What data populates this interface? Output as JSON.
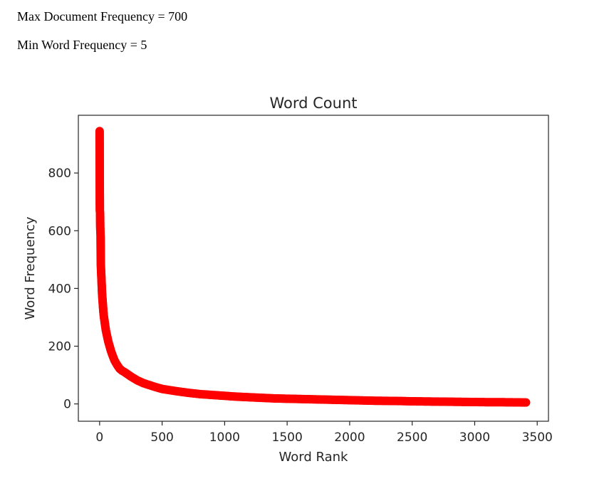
{
  "params": {
    "max_doc_freq": "Max Document Frequency = 700",
    "min_word_freq": "Min Word Frequency = 5"
  },
  "colors": {
    "marker": "#ff0000",
    "axis": "#262626"
  },
  "chart_data": {
    "type": "scatter",
    "title": "Word Count",
    "xlabel": "Word Rank",
    "ylabel": "Word Frequency",
    "xlim": [
      -170,
      3590
    ],
    "ylim": [
      -60,
      1000
    ],
    "xticks": [
      0,
      500,
      1000,
      1500,
      2000,
      2500,
      3000,
      3500
    ],
    "yticks": [
      0,
      200,
      400,
      600,
      800
    ],
    "grid": false,
    "marker_color": "#ff0000",
    "series": [
      {
        "points": [
          [
            0,
            945
          ],
          [
            1,
            787
          ],
          [
            2,
            670
          ],
          [
            3,
            665
          ],
          [
            4,
            660
          ],
          [
            5,
            615
          ],
          [
            6,
            600
          ],
          [
            7,
            590
          ],
          [
            8,
            580
          ],
          [
            9,
            512
          ],
          [
            10,
            480
          ],
          [
            11,
            470
          ],
          [
            12,
            460
          ],
          [
            14,
            440
          ],
          [
            16,
            420
          ],
          [
            18,
            400
          ],
          [
            20,
            380
          ],
          [
            25,
            350
          ],
          [
            30,
            320
          ],
          [
            35,
            300
          ],
          [
            40,
            285
          ],
          [
            50,
            255
          ],
          [
            60,
            235
          ],
          [
            70,
            215
          ],
          [
            80,
            200
          ],
          [
            90,
            185
          ],
          [
            100,
            172
          ],
          [
            120,
            150
          ],
          [
            140,
            135
          ],
          [
            160,
            122
          ],
          [
            180,
            115
          ],
          [
            200,
            110
          ],
          [
            250,
            95
          ],
          [
            300,
            82
          ],
          [
            350,
            72
          ],
          [
            400,
            65
          ],
          [
            450,
            58
          ],
          [
            500,
            52
          ],
          [
            600,
            45
          ],
          [
            700,
            39
          ],
          [
            800,
            34
          ],
          [
            900,
            31
          ],
          [
            1000,
            28
          ],
          [
            1100,
            25
          ],
          [
            1200,
            23
          ],
          [
            1300,
            21
          ],
          [
            1400,
            19
          ],
          [
            1500,
            18
          ],
          [
            1600,
            17
          ],
          [
            1700,
            16
          ],
          [
            1800,
            15
          ],
          [
            1900,
            14
          ],
          [
            2000,
            13
          ],
          [
            2100,
            12
          ],
          [
            2200,
            11
          ],
          [
            2300,
            10.5
          ],
          [
            2400,
            10
          ],
          [
            2500,
            9
          ],
          [
            2600,
            8.5
          ],
          [
            2700,
            8
          ],
          [
            2800,
            7.5
          ],
          [
            2900,
            7
          ],
          [
            3000,
            6.5
          ],
          [
            3100,
            6
          ],
          [
            3200,
            6
          ],
          [
            3300,
            5.5
          ],
          [
            3400,
            5
          ],
          [
            3410,
            5
          ]
        ]
      }
    ]
  }
}
